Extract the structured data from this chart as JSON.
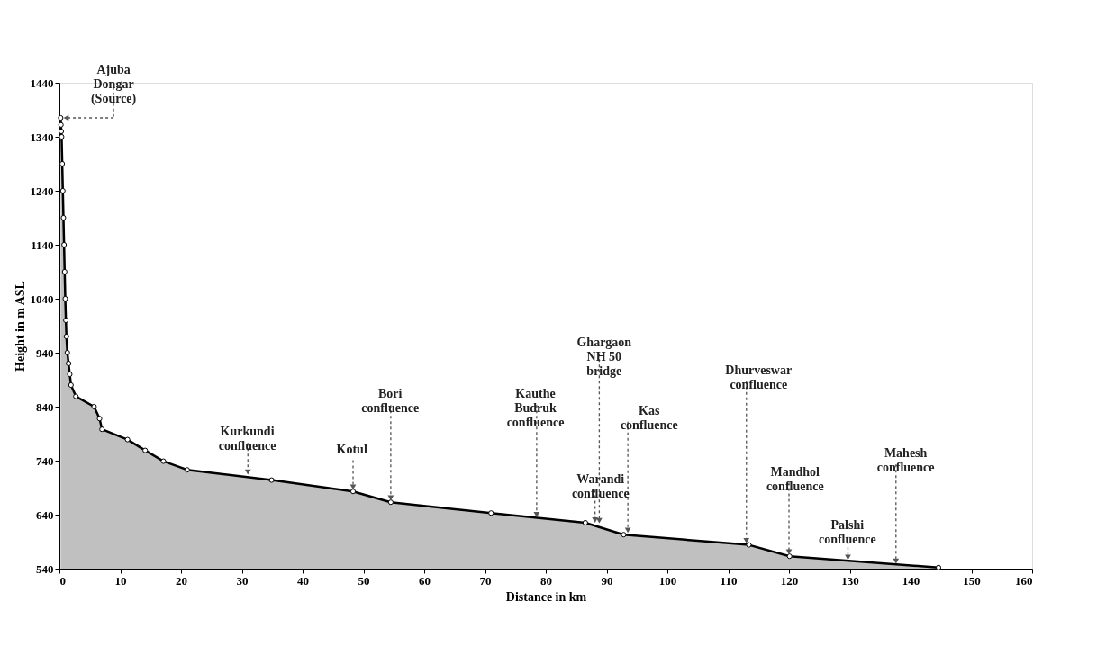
{
  "chart_data": {
    "type": "area",
    "xlabel": "Distance in km",
    "ylabel": "Height in m ASL",
    "x": [
      0.2,
      0.25,
      0.3,
      0.36,
      0.46,
      0.56,
      0.66,
      0.76,
      0.86,
      0.96,
      1.06,
      1.15,
      1.3,
      1.5,
      1.7,
      1.9,
      2.7,
      5.7,
      6.6,
      7.0,
      11.2,
      14.1,
      17.1,
      21.0,
      34.9,
      48.3,
      54.5,
      71.0,
      86.5,
      92.8,
      113.4,
      120.1,
      144.6
    ],
    "series": [
      {
        "color": "#c0c0c0",
        "values": [
          1375,
          1362,
          1350,
          1340,
          1290,
          1240,
          1190,
          1140,
          1090,
          1040,
          1000,
          970,
          940,
          920,
          900,
          880,
          859,
          840,
          818,
          798,
          779,
          759,
          739,
          723,
          704,
          683,
          663,
          643,
          625,
          603,
          584,
          563,
          542
        ]
      }
    ],
    "annotations": [
      {
        "text": "Ajuba\nDongar\n(Source)",
        "x": 0.2,
        "y": 1375
      },
      {
        "text": "Kurkundi\nconfluence",
        "x": 31,
        "y": 711
      },
      {
        "text": "Kotul",
        "x": 48.3,
        "y": 683
      },
      {
        "text": "Bori\nconfluence",
        "x": 54.5,
        "y": 663
      },
      {
        "text": "Kauthe\nBudruk\nconfluence",
        "x": 78.5,
        "y": 632
      },
      {
        "text": "Ghargaon\nNH 50\nbridge",
        "x": 88.8,
        "y": 621
      },
      {
        "text": "Warandi\nconfluence",
        "x": 88.1,
        "y": 622
      },
      {
        "text": "Kas\nconfluence",
        "x": 93.5,
        "y": 603
      },
      {
        "text": "Dhurveswar\nconfluence",
        "x": 113,
        "y": 584
      },
      {
        "text": "Mandhol\nconfluence",
        "x": 120,
        "y": 563
      },
      {
        "text": "Palshi\nconfluence",
        "x": 129.7,
        "y": 553
      },
      {
        "text": "Mahesh\nconfluence",
        "x": 137.6,
        "y": 546
      }
    ],
    "xlim": [
      0,
      160
    ],
    "xticks": [
      0,
      10,
      20,
      30,
      40,
      50,
      60,
      70,
      80,
      90,
      100,
      110,
      120,
      130,
      140,
      150,
      160
    ],
    "ylim": [
      540,
      1440
    ],
    "yticks": [
      540,
      640,
      740,
      840,
      940,
      1040,
      1140,
      1240,
      1340,
      1440
    ],
    "marker": "circle",
    "line_style": "solid",
    "grid": false
  }
}
